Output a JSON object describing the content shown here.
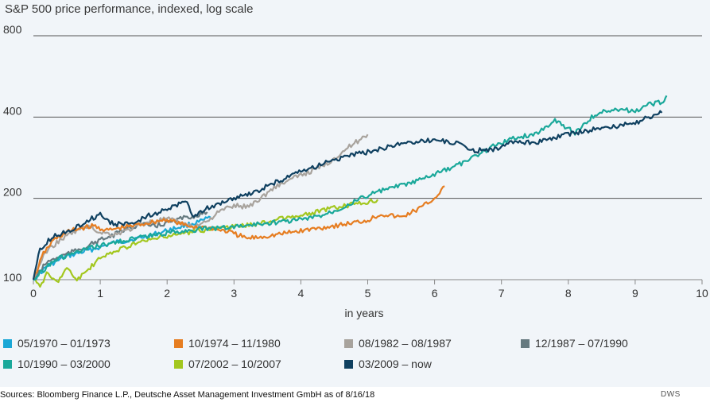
{
  "chart_data": {
    "type": "line",
    "title": "S&P 500 price performance, indexed, log scale",
    "xlabel": "in years",
    "ylabel": "",
    "xlim": [
      0,
      10
    ],
    "ylim": [
      100,
      800
    ],
    "yscale": "log",
    "x_ticks": [
      "0",
      "1",
      "2",
      "3",
      "4",
      "5",
      "6",
      "7",
      "8",
      "9",
      "10"
    ],
    "y_ticks": [
      "100",
      "200",
      "400",
      "800"
    ],
    "y_tick_values": [
      100,
      200,
      400,
      800
    ],
    "grid": "horizontal",
    "legend_position": "bottom",
    "series": [
      {
        "name": "05/1970 – 01/1973",
        "color": "#1aa7d6",
        "x": [
          0,
          0.2,
          0.5,
          0.8,
          1.0,
          1.2,
          1.5,
          1.8,
          2.0,
          2.2,
          2.5,
          2.65
        ],
        "y": [
          100,
          112,
          122,
          128,
          132,
          137,
          141,
          147,
          152,
          157,
          164,
          170
        ]
      },
      {
        "name": "10/1974 – 11/1980",
        "color": "#e67d21",
        "x": [
          0,
          0.15,
          0.3,
          0.5,
          0.7,
          0.9,
          1.1,
          1.4,
          1.7,
          2.0,
          2.3,
          2.6,
          2.9,
          3.2,
          3.5,
          3.8,
          4.1,
          4.4,
          4.7,
          5.0,
          5.2,
          5.5,
          5.8,
          6.0,
          6.15
        ],
        "y": [
          100,
          125,
          140,
          150,
          155,
          158,
          152,
          157,
          162,
          167,
          158,
          156,
          151,
          142,
          145,
          149,
          153,
          157,
          161,
          166,
          175,
          170,
          185,
          200,
          222
        ]
      },
      {
        "name": "08/1982 – 08/1987",
        "color": "#a8a39d",
        "x": [
          0,
          0.1,
          0.2,
          0.4,
          0.6,
          0.8,
          1.0,
          1.2,
          1.4,
          1.6,
          1.8,
          2.0,
          2.2,
          2.4,
          2.6,
          2.8,
          3.0,
          3.2,
          3.4,
          3.6,
          3.8,
          4.0,
          4.2,
          4.4,
          4.6,
          4.8,
          5.0
        ],
        "y": [
          100,
          115,
          128,
          140,
          150,
          158,
          150,
          147,
          152,
          160,
          165,
          168,
          162,
          157,
          165,
          180,
          188,
          186,
          200,
          220,
          232,
          244,
          255,
          270,
          295,
          320,
          345
        ]
      },
      {
        "name": "12/1987 – 07/1990",
        "color": "#667a80",
        "x": [
          0,
          0.2,
          0.4,
          0.6,
          0.8,
          1.0,
          1.2,
          1.4,
          1.6,
          1.8,
          2.0,
          2.2,
          2.4,
          2.6
        ],
        "y": [
          100,
          116,
          122,
          127,
          133,
          140,
          146,
          155,
          160,
          158,
          162,
          168,
          172,
          178
        ]
      },
      {
        "name": "10/1990 – 03/2000",
        "color": "#1aa89a",
        "x": [
          0,
          0.3,
          0.6,
          0.9,
          1.2,
          1.5,
          1.8,
          2.1,
          2.4,
          2.7,
          3.0,
          3.3,
          3.6,
          3.9,
          4.2,
          4.5,
          4.8,
          5.1,
          5.4,
          5.7,
          6.0,
          6.3,
          6.6,
          6.9,
          7.2,
          7.5,
          7.8,
          8.1,
          8.4,
          8.7,
          9.0,
          9.2,
          9.4,
          9.47
        ],
        "y": [
          100,
          118,
          125,
          132,
          137,
          142,
          146,
          150,
          153,
          155,
          157,
          160,
          163,
          166,
          170,
          180,
          195,
          210,
          220,
          230,
          245,
          262,
          285,
          315,
          335,
          345,
          390,
          350,
          410,
          430,
          420,
          445,
          455,
          480
        ]
      },
      {
        "name": "07/2002 – 10/2007",
        "color": "#a3c71f",
        "x": [
          0,
          0.1,
          0.2,
          0.35,
          0.5,
          0.65,
          0.8,
          1.0,
          1.3,
          1.6,
          1.9,
          2.2,
          2.5,
          2.8,
          3.1,
          3.4,
          3.7,
          4.0,
          4.3,
          4.6,
          4.9,
          5.15
        ],
        "y": [
          100,
          95,
          105,
          98,
          110,
          100,
          108,
          120,
          130,
          138,
          143,
          148,
          152,
          155,
          158,
          162,
          168,
          172,
          180,
          186,
          192,
          198
        ]
      },
      {
        "name": "03/2009 – now",
        "color": "#0f4060",
        "x": [
          0,
          0.1,
          0.3,
          0.5,
          0.8,
          1.0,
          1.2,
          1.5,
          1.7,
          2.0,
          2.3,
          2.4,
          2.5,
          2.7,
          3.0,
          3.3,
          3.6,
          3.9,
          4.2,
          4.5,
          4.8,
          5.1,
          5.4,
          5.7,
          6.0,
          6.3,
          6.6,
          6.9,
          7.2,
          7.5,
          7.8,
          8.1,
          8.4,
          8.7,
          9.0,
          9.2,
          9.4
        ],
        "y": [
          100,
          130,
          145,
          150,
          165,
          175,
          160,
          162,
          172,
          182,
          195,
          168,
          180,
          188,
          200,
          210,
          228,
          245,
          262,
          278,
          290,
          300,
          315,
          325,
          330,
          322,
          300,
          305,
          325,
          320,
          335,
          350,
          360,
          370,
          380,
          400,
          415
        ]
      }
    ]
  },
  "legend": {
    "items": [
      {
        "label": "05/1970 – 01/1973",
        "color": "#1aa7d6"
      },
      {
        "label": "10/1974 – 11/1980",
        "color": "#e67d21"
      },
      {
        "label": "08/1982 – 08/1987",
        "color": "#a8a39d"
      },
      {
        "label": "12/1987 – 07/1990",
        "color": "#667a80"
      },
      {
        "label": "10/1990 – 03/2000",
        "color": "#1aa89a"
      },
      {
        "label": "07/2002 – 10/2007",
        "color": "#a3c71f"
      },
      {
        "label": "03/2009 – now",
        "color": "#0f4060"
      }
    ]
  },
  "footer": {
    "source": "Sources: Bloomberg Finance L.P., Deutsche Asset Management Investment GmbH as of 8/16/18",
    "logo": "DWS"
  }
}
